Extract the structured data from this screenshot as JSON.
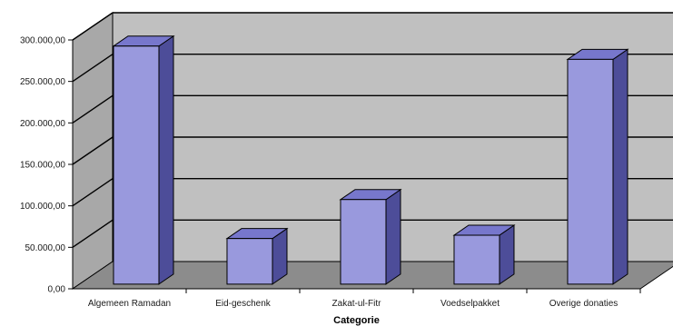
{
  "chart_data": {
    "type": "bar",
    "style": "3d-column",
    "categories": [
      "Algemeen Ramadan",
      "Eid-geschenk",
      "Zakat-ul-Fitr",
      "Voedselpakket",
      "Overige donaties"
    ],
    "values": [
      287000,
      55000,
      102000,
      59000,
      271000
    ],
    "xlabel": "Categorie",
    "ylabel": "",
    "ylim": [
      0,
      300000
    ],
    "yticks": [
      "0,00",
      "50.000,00",
      "100.000,00",
      "150.000,00",
      "200.000,00",
      "250.000,00",
      "300.000,00"
    ],
    "grid": true,
    "legend": "none",
    "colors": {
      "bar_front": "#9999DD",
      "bar_top": "#7777CC",
      "bar_side": "#4D4D99",
      "back_wall": "#C0C0C0",
      "side_wall": "#A8A8A8",
      "floor": "#8C8C8C",
      "gridline": "#000000"
    }
  }
}
